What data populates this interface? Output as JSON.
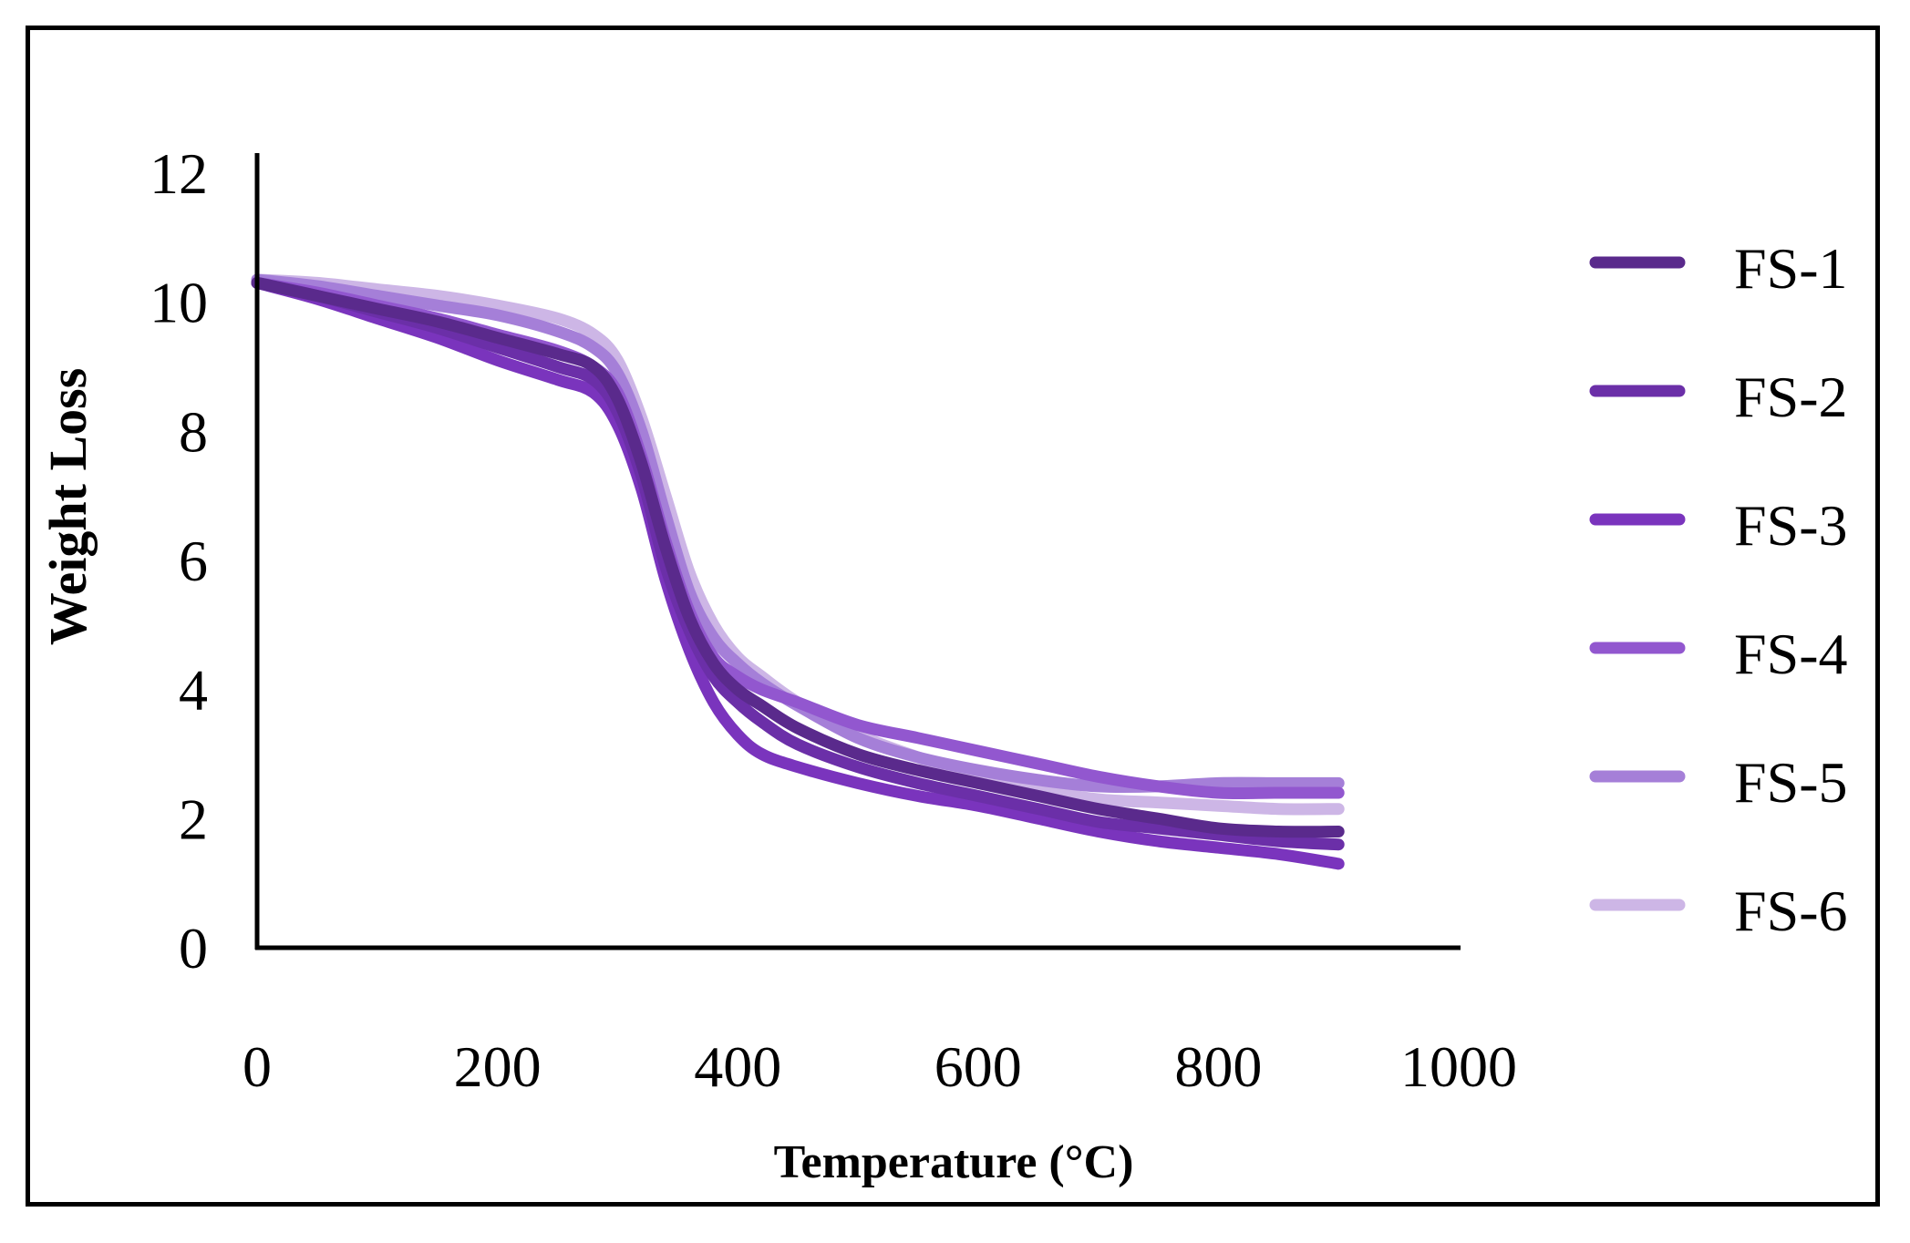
{
  "chart_data": {
    "type": "line",
    "title": "",
    "xlabel": "Temperature (°C)",
    "ylabel": "Weight Loss",
    "xlim": [
      0,
      1000
    ],
    "ylim": [
      0,
      12
    ],
    "xticks": [
      "0",
      "200",
      "400",
      "600",
      "800",
      "1000"
    ],
    "yticks": [
      "0",
      "2",
      "4",
      "6",
      "8",
      "10",
      "12"
    ],
    "grid": false,
    "legend_position": "right",
    "x": [
      0,
      50,
      100,
      150,
      200,
      250,
      280,
      300,
      320,
      340,
      360,
      380,
      400,
      420,
      450,
      500,
      550,
      600,
      650,
      700,
      750,
      800,
      850,
      900
    ],
    "series": [
      {
        "name": "FS-1",
        "color": "#5a2a8c",
        "values": [
          10.3,
          10.1,
          9.9,
          9.7,
          9.45,
          9.2,
          9.0,
          8.5,
          7.5,
          6.2,
          5.1,
          4.4,
          4.0,
          3.75,
          3.4,
          3.0,
          2.75,
          2.55,
          2.35,
          2.15,
          2.0,
          1.85,
          1.8,
          1.8
        ]
      },
      {
        "name": "FS-2",
        "color": "#6b2fa8",
        "values": [
          10.3,
          10.1,
          9.85,
          9.6,
          9.3,
          9.0,
          8.8,
          8.3,
          7.3,
          5.9,
          4.9,
          4.2,
          3.8,
          3.5,
          3.15,
          2.8,
          2.55,
          2.35,
          2.15,
          1.95,
          1.85,
          1.75,
          1.65,
          1.6
        ]
      },
      {
        "name": "FS-3",
        "color": "#7a34bd",
        "values": [
          10.3,
          10.05,
          9.75,
          9.45,
          9.1,
          8.8,
          8.6,
          8.1,
          7.1,
          5.7,
          4.6,
          3.8,
          3.3,
          3.0,
          2.8,
          2.55,
          2.35,
          2.2,
          2.0,
          1.8,
          1.65,
          1.55,
          1.45,
          1.3
        ]
      },
      {
        "name": "FS-4",
        "color": "#9257cf",
        "values": [
          10.3,
          10.15,
          9.95,
          9.75,
          9.5,
          9.25,
          9.0,
          8.6,
          7.6,
          6.3,
          5.2,
          4.5,
          4.2,
          4.0,
          3.8,
          3.45,
          3.25,
          3.05,
          2.85,
          2.65,
          2.5,
          2.4,
          2.4,
          2.4
        ]
      },
      {
        "name": "FS-5",
        "color": "#a57fd8",
        "values": [
          10.35,
          10.25,
          10.1,
          9.95,
          9.8,
          9.55,
          9.3,
          8.9,
          8.0,
          6.7,
          5.5,
          4.8,
          4.4,
          4.1,
          3.75,
          3.25,
          2.95,
          2.75,
          2.6,
          2.5,
          2.5,
          2.55,
          2.55,
          2.55
        ]
      },
      {
        "name": "FS-6",
        "color": "#cdb6e6",
        "values": [
          10.35,
          10.3,
          10.2,
          10.1,
          9.95,
          9.75,
          9.5,
          9.1,
          8.2,
          7.0,
          5.8,
          5.0,
          4.5,
          4.2,
          3.8,
          3.3,
          2.95,
          2.65,
          2.45,
          2.3,
          2.25,
          2.2,
          2.15,
          2.15
        ]
      }
    ]
  }
}
